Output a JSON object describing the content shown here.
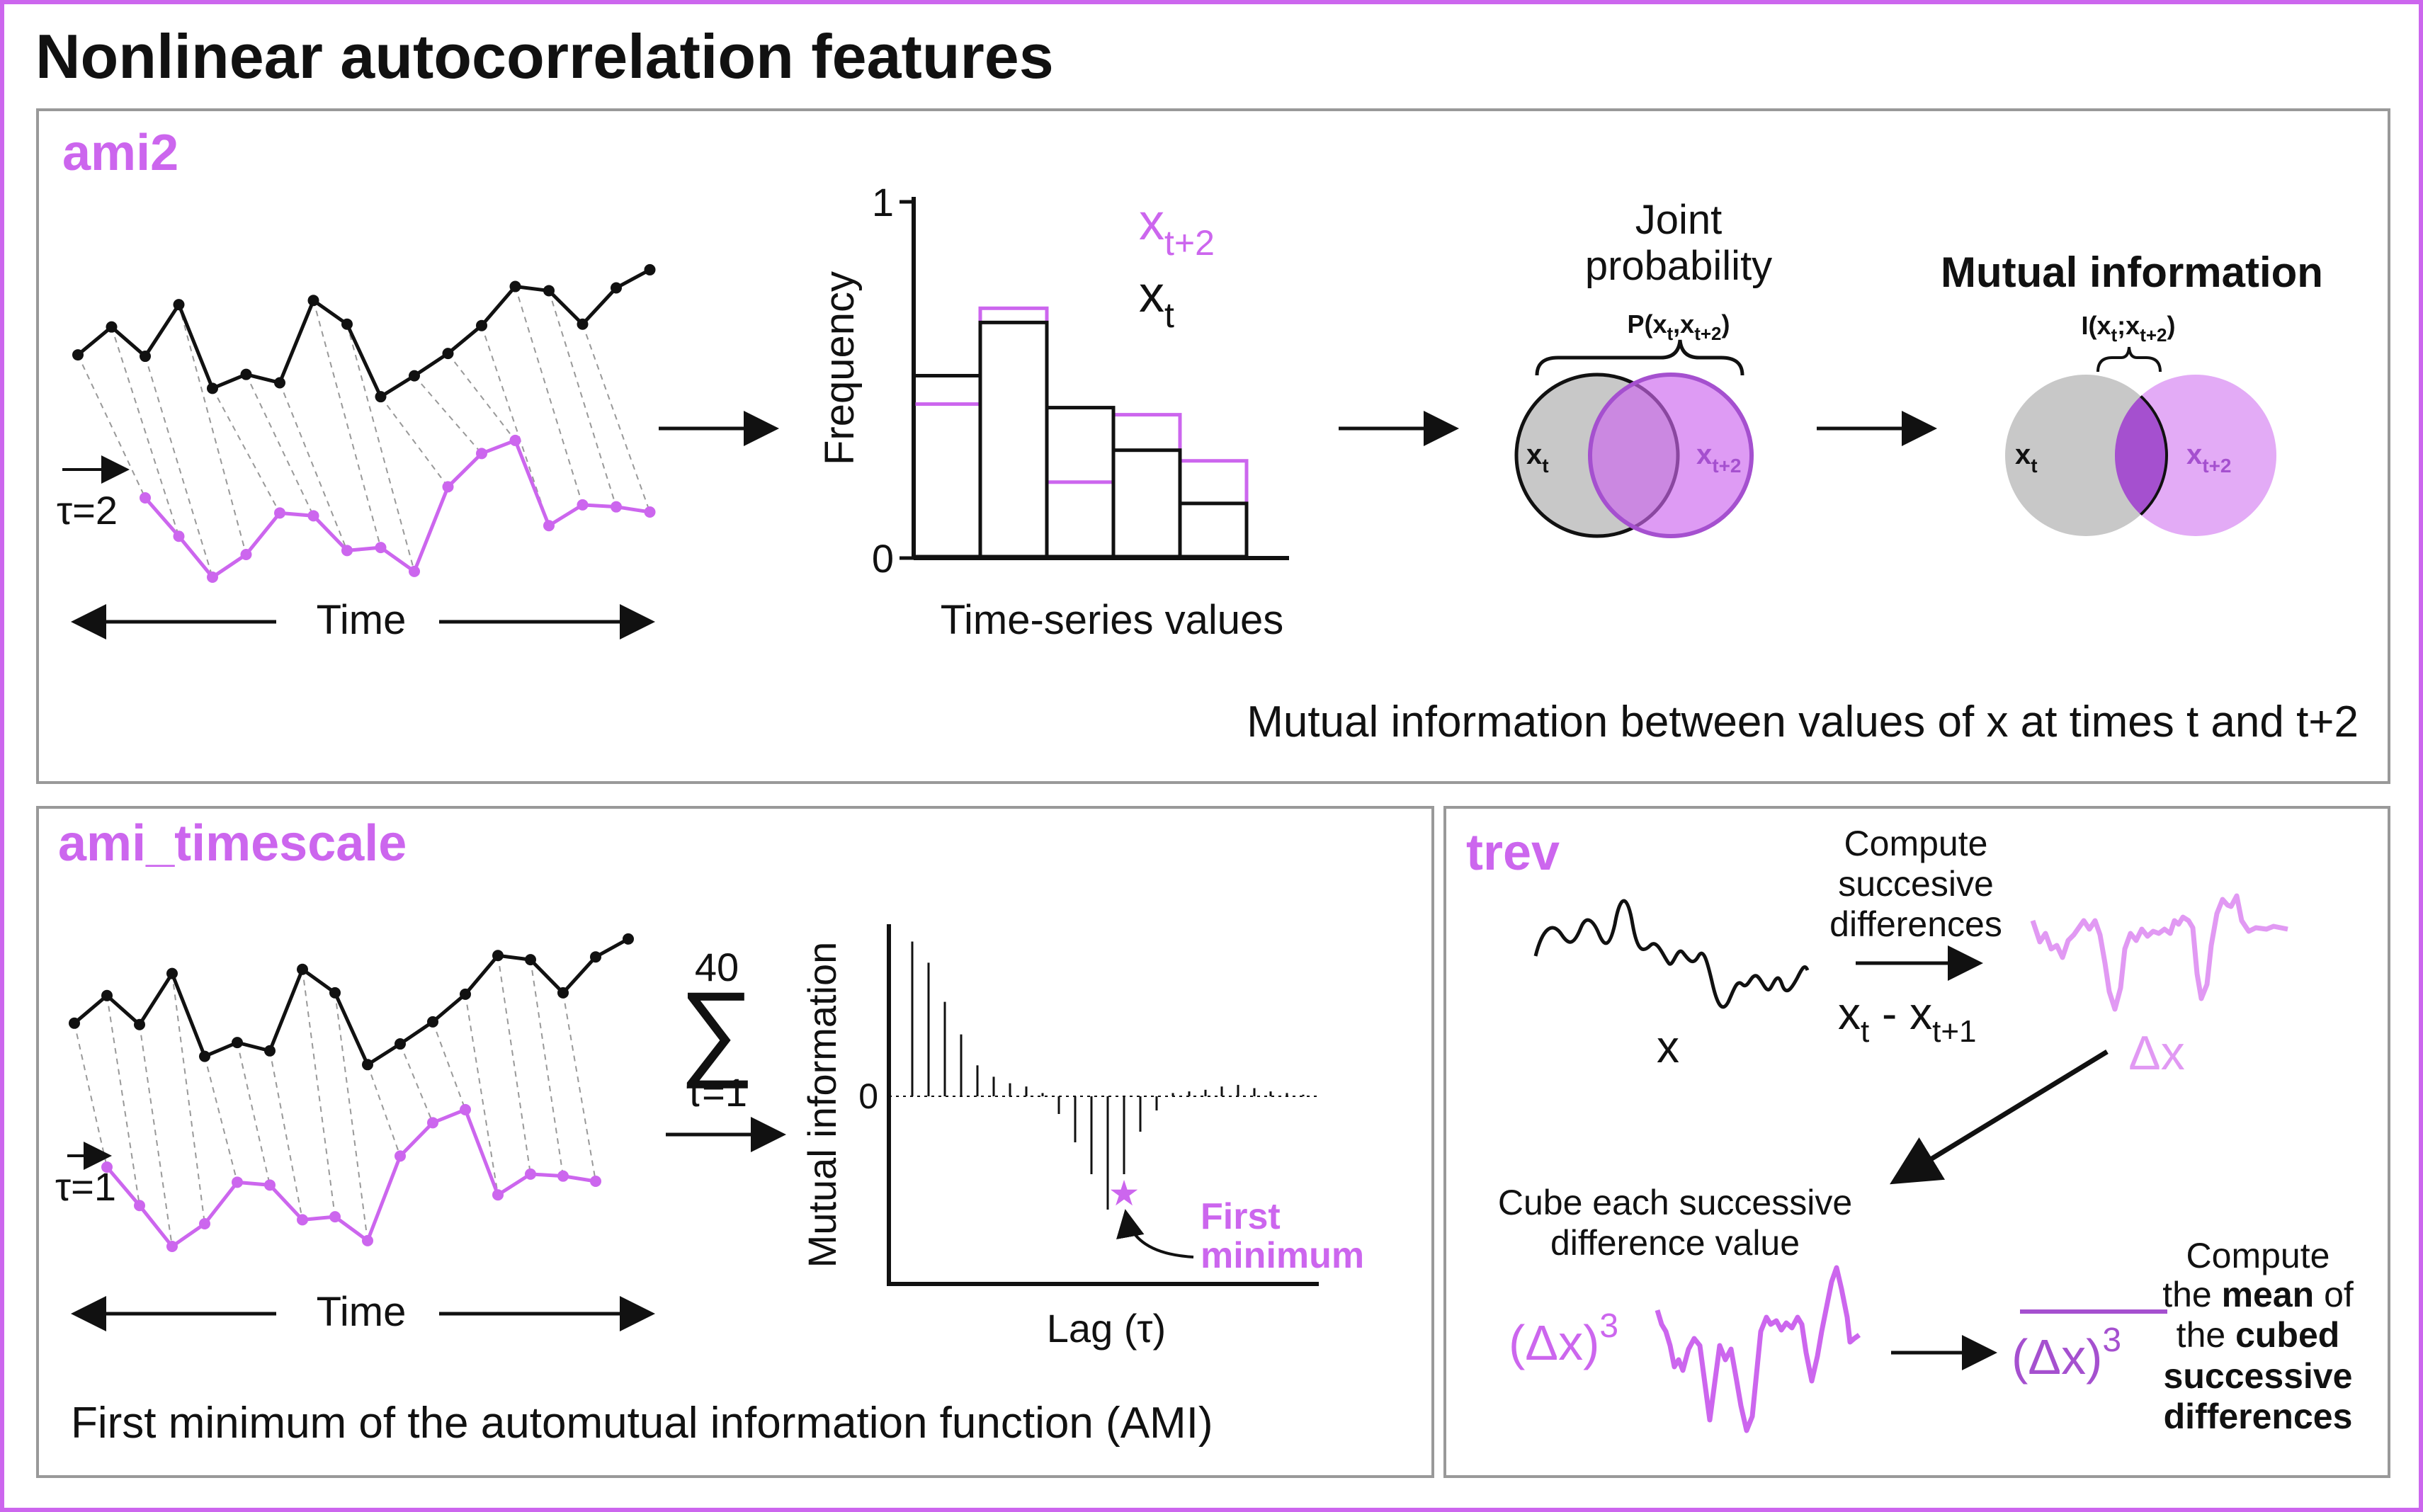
{
  "title": "Nonlinear autocorrelation features",
  "colors": {
    "accent": "#cc66ee",
    "accent_dark": "#a550cf",
    "black": "#111111",
    "gray": "#c8c8c8",
    "frame": "#999999"
  },
  "ami2": {
    "label": "ami2",
    "tau_label": "τ=2",
    "time_label": "Time",
    "hist": {
      "ylabel": "Frequency",
      "xlabel": "Time-series values",
      "ytick_top": "1",
      "ytick_bottom": "0",
      "legend_purple": "x",
      "legend_purple_sub": "t+2",
      "legend_black": "x",
      "legend_black_sub": "t",
      "black_values": [
        0.51,
        0.66,
        0.42,
        0.3,
        0.15
      ],
      "purple_values": [
        0.43,
        0.7,
        0.21,
        0.4,
        0.27
      ]
    },
    "joint": {
      "title_line1": "Joint",
      "title_line2": "probability",
      "brace_label": "P(x",
      "brace_sub1": "t",
      "brace_mid": ",x",
      "brace_sub2": "t+2",
      "brace_end": ")",
      "left": "x",
      "left_sub": "t",
      "right": "x",
      "right_sub": "t+2"
    },
    "mi": {
      "title": "Mutual information",
      "brace_label": "I(x",
      "brace_sub1": "t",
      "brace_mid": ";x",
      "brace_sub2": "t+2",
      "brace_end": ")",
      "left": "x",
      "left_sub": "t",
      "right": "x",
      "right_sub": "t+2"
    },
    "caption": "Mutual information between values of x at times t and t+2"
  },
  "ami_timescale": {
    "label": "ami_timescale",
    "tau_label": "τ=1",
    "time_label": "Time",
    "sum_top": "40",
    "sum_symbol": "∑",
    "sum_bottom": "τ=1",
    "ylabel": "Mutual information",
    "xlabel": "Lag (τ)",
    "zero_label": "0",
    "annot_line1": "First",
    "annot_line2": "minimum",
    "star": "★",
    "caption": "First minimum of the automutual information function (AMI)"
  },
  "trev": {
    "label": "trev",
    "x_label": "x",
    "step1_line1": "Compute",
    "step1_line2": "succesive",
    "step1_line3": "differences",
    "formula_a": "x",
    "formula_a_sub": "t",
    "formula_mid": " - x",
    "formula_b_sub": "t+1",
    "dx_label": "Δx",
    "step2_line1": "Cube each successive",
    "step2_line2": "difference value",
    "cube_label": "(Δx)",
    "cube_exp": "3",
    "mean_label": "(Δx)",
    "mean_exp": "3",
    "step3_line1": "Compute",
    "step3_line2a": "the ",
    "step3_line2b": "mean",
    "step3_line2c": " of",
    "step3_line3a": "the ",
    "step3_line3b": "cubed",
    "step3_line4": "successive",
    "step3_line5": "differences"
  },
  "series_top": [
    0.64,
    0.44,
    0.65,
    0.28,
    0.88,
    0.78,
    0.84,
    0.25,
    0.42,
    0.94,
    0.79,
    0.63,
    0.43,
    0.15,
    0.18,
    0.42,
    0.16,
    0.03
  ],
  "series_bottom": [
    0.38,
    0.9,
    1.0,
    0.45,
    0.7,
    0.83,
    0.91,
    0.08,
    0.04,
    0.71,
    0.39,
    0.59
  ],
  "stems": [
    0.95,
    0.82,
    0.58,
    0.38,
    0.19,
    0.12,
    0.08,
    0.06,
    0.02,
    -0.05,
    -0.13,
    -0.22,
    -0.32,
    -0.22,
    -0.1,
    -0.04,
    0.02,
    0.03,
    0.04,
    0.06,
    0.07,
    0.05,
    0.03,
    0.02,
    0.01
  ],
  "min_index": 13
}
